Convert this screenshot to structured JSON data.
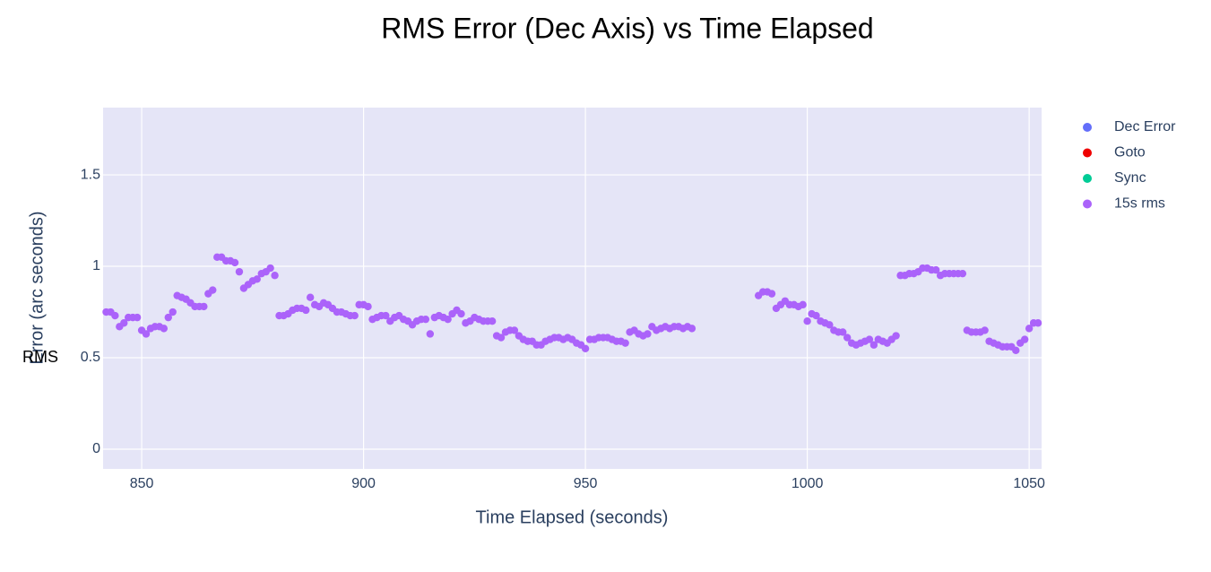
{
  "chart_data": {
    "type": "scatter",
    "title": "RMS  Error (Dec Axis) vs Time Elapsed",
    "x_label": "Time Elapsed (seconds)",
    "y_label": "Error (arc seconds)",
    "annotation": "RMS",
    "xlim": [
      841.3,
      1052.8
    ],
    "xticks": [
      850,
      900,
      950,
      1000,
      1050
    ],
    "ylim": [
      -0.108,
      1.868
    ],
    "yticks": [
      0,
      0.5,
      1,
      1.5
    ],
    "grid": true,
    "legend": "right",
    "series": [
      {
        "name": "Dec Error",
        "color": "#636efa",
        "x": [],
        "values": []
      },
      {
        "name": "Goto",
        "color": "#ef0000",
        "x": [],
        "values": []
      },
      {
        "name": "Sync",
        "color": "#00cc96",
        "x": [],
        "values": []
      },
      {
        "name": "15s rms",
        "color": "#ab63fa",
        "x": [
          842,
          843,
          844,
          845,
          846,
          847,
          848,
          849,
          850,
          851,
          852,
          853,
          854,
          855,
          856,
          857,
          858,
          859,
          860,
          861,
          862,
          863,
          864,
          865,
          866,
          867,
          868,
          869,
          870,
          871,
          872,
          873,
          874,
          875,
          876,
          877,
          878,
          879,
          880,
          881,
          882,
          883,
          884,
          885,
          886,
          887,
          888,
          889,
          890,
          891,
          892,
          893,
          894,
          895,
          896,
          897,
          898,
          899,
          900,
          901,
          902,
          903,
          904,
          905,
          906,
          907,
          908,
          909,
          910,
          911,
          912,
          913,
          914,
          915,
          916,
          917,
          918,
          919,
          920,
          921,
          922,
          923,
          924,
          925,
          926,
          927,
          928,
          929,
          930,
          931,
          932,
          933,
          934,
          935,
          936,
          937,
          938,
          939,
          940,
          941,
          942,
          943,
          944,
          945,
          946,
          947,
          948,
          949,
          950,
          951,
          952,
          953,
          954,
          955,
          956,
          957,
          958,
          959,
          960,
          961,
          962,
          963,
          964,
          965,
          966,
          967,
          968,
          969,
          970,
          971,
          972,
          973,
          974,
          989,
          990,
          991,
          992,
          993,
          994,
          995,
          996,
          997,
          998,
          999,
          1000,
          1001,
          1002,
          1003,
          1004,
          1005,
          1006,
          1007,
          1008,
          1009,
          1010,
          1011,
          1012,
          1013,
          1014,
          1015,
          1016,
          1017,
          1018,
          1019,
          1020,
          1021,
          1022,
          1023,
          1024,
          1025,
          1026,
          1027,
          1028,
          1029,
          1030,
          1031,
          1032,
          1033,
          1034,
          1035,
          1036,
          1037,
          1038,
          1039,
          1040,
          1041,
          1042,
          1043,
          1044,
          1045,
          1046,
          1047,
          1048,
          1049,
          1050,
          1051,
          1052
        ],
        "values": [
          0.75,
          0.75,
          0.73,
          0.67,
          0.69,
          0.72,
          0.72,
          0.72,
          0.65,
          0.63,
          0.66,
          0.67,
          0.67,
          0.66,
          0.72,
          0.75,
          0.84,
          0.83,
          0.82,
          0.8,
          0.78,
          0.78,
          0.78,
          0.85,
          0.87,
          1.05,
          1.05,
          1.03,
          1.03,
          1.02,
          0.97,
          0.88,
          0.9,
          0.92,
          0.93,
          0.96,
          0.97,
          0.99,
          0.95,
          0.73,
          0.73,
          0.74,
          0.76,
          0.77,
          0.77,
          0.76,
          0.83,
          0.79,
          0.78,
          0.8,
          0.79,
          0.77,
          0.75,
          0.75,
          0.74,
          0.73,
          0.73,
          0.79,
          0.79,
          0.78,
          0.71,
          0.72,
          0.73,
          0.73,
          0.7,
          0.72,
          0.73,
          0.71,
          0.7,
          0.68,
          0.7,
          0.71,
          0.71,
          0.63,
          0.72,
          0.73,
          0.72,
          0.71,
          0.74,
          0.76,
          0.74,
          0.69,
          0.7,
          0.72,
          0.71,
          0.7,
          0.7,
          0.7,
          0.62,
          0.61,
          0.64,
          0.65,
          0.65,
          0.62,
          0.6,
          0.59,
          0.59,
          0.57,
          0.57,
          0.59,
          0.6,
          0.61,
          0.61,
          0.6,
          0.61,
          0.6,
          0.58,
          0.57,
          0.55,
          0.6,
          0.6,
          0.61,
          0.61,
          0.61,
          0.6,
          0.59,
          0.59,
          0.58,
          0.64,
          0.65,
          0.63,
          0.62,
          0.63,
          0.67,
          0.65,
          0.66,
          0.67,
          0.66,
          0.67,
          0.67,
          0.66,
          0.67,
          0.66,
          0.84,
          0.86,
          0.86,
          0.85,
          0.77,
          0.79,
          0.81,
          0.79,
          0.79,
          0.78,
          0.79,
          0.7,
          0.74,
          0.73,
          0.7,
          0.69,
          0.68,
          0.65,
          0.64,
          0.64,
          0.61,
          0.58,
          0.57,
          0.58,
          0.59,
          0.6,
          0.57,
          0.6,
          0.59,
          0.58,
          0.6,
          0.62,
          0.95,
          0.95,
          0.96,
          0.96,
          0.97,
          0.99,
          0.99,
          0.98,
          0.98,
          0.95,
          0.96,
          0.96,
          0.96,
          0.96,
          0.96,
          0.65,
          0.64,
          0.64,
          0.64,
          0.65,
          0.59,
          0.58,
          0.57,
          0.56,
          0.56,
          0.56,
          0.54,
          0.58,
          0.6,
          0.66,
          0.69,
          0.69
        ]
      }
    ]
  }
}
